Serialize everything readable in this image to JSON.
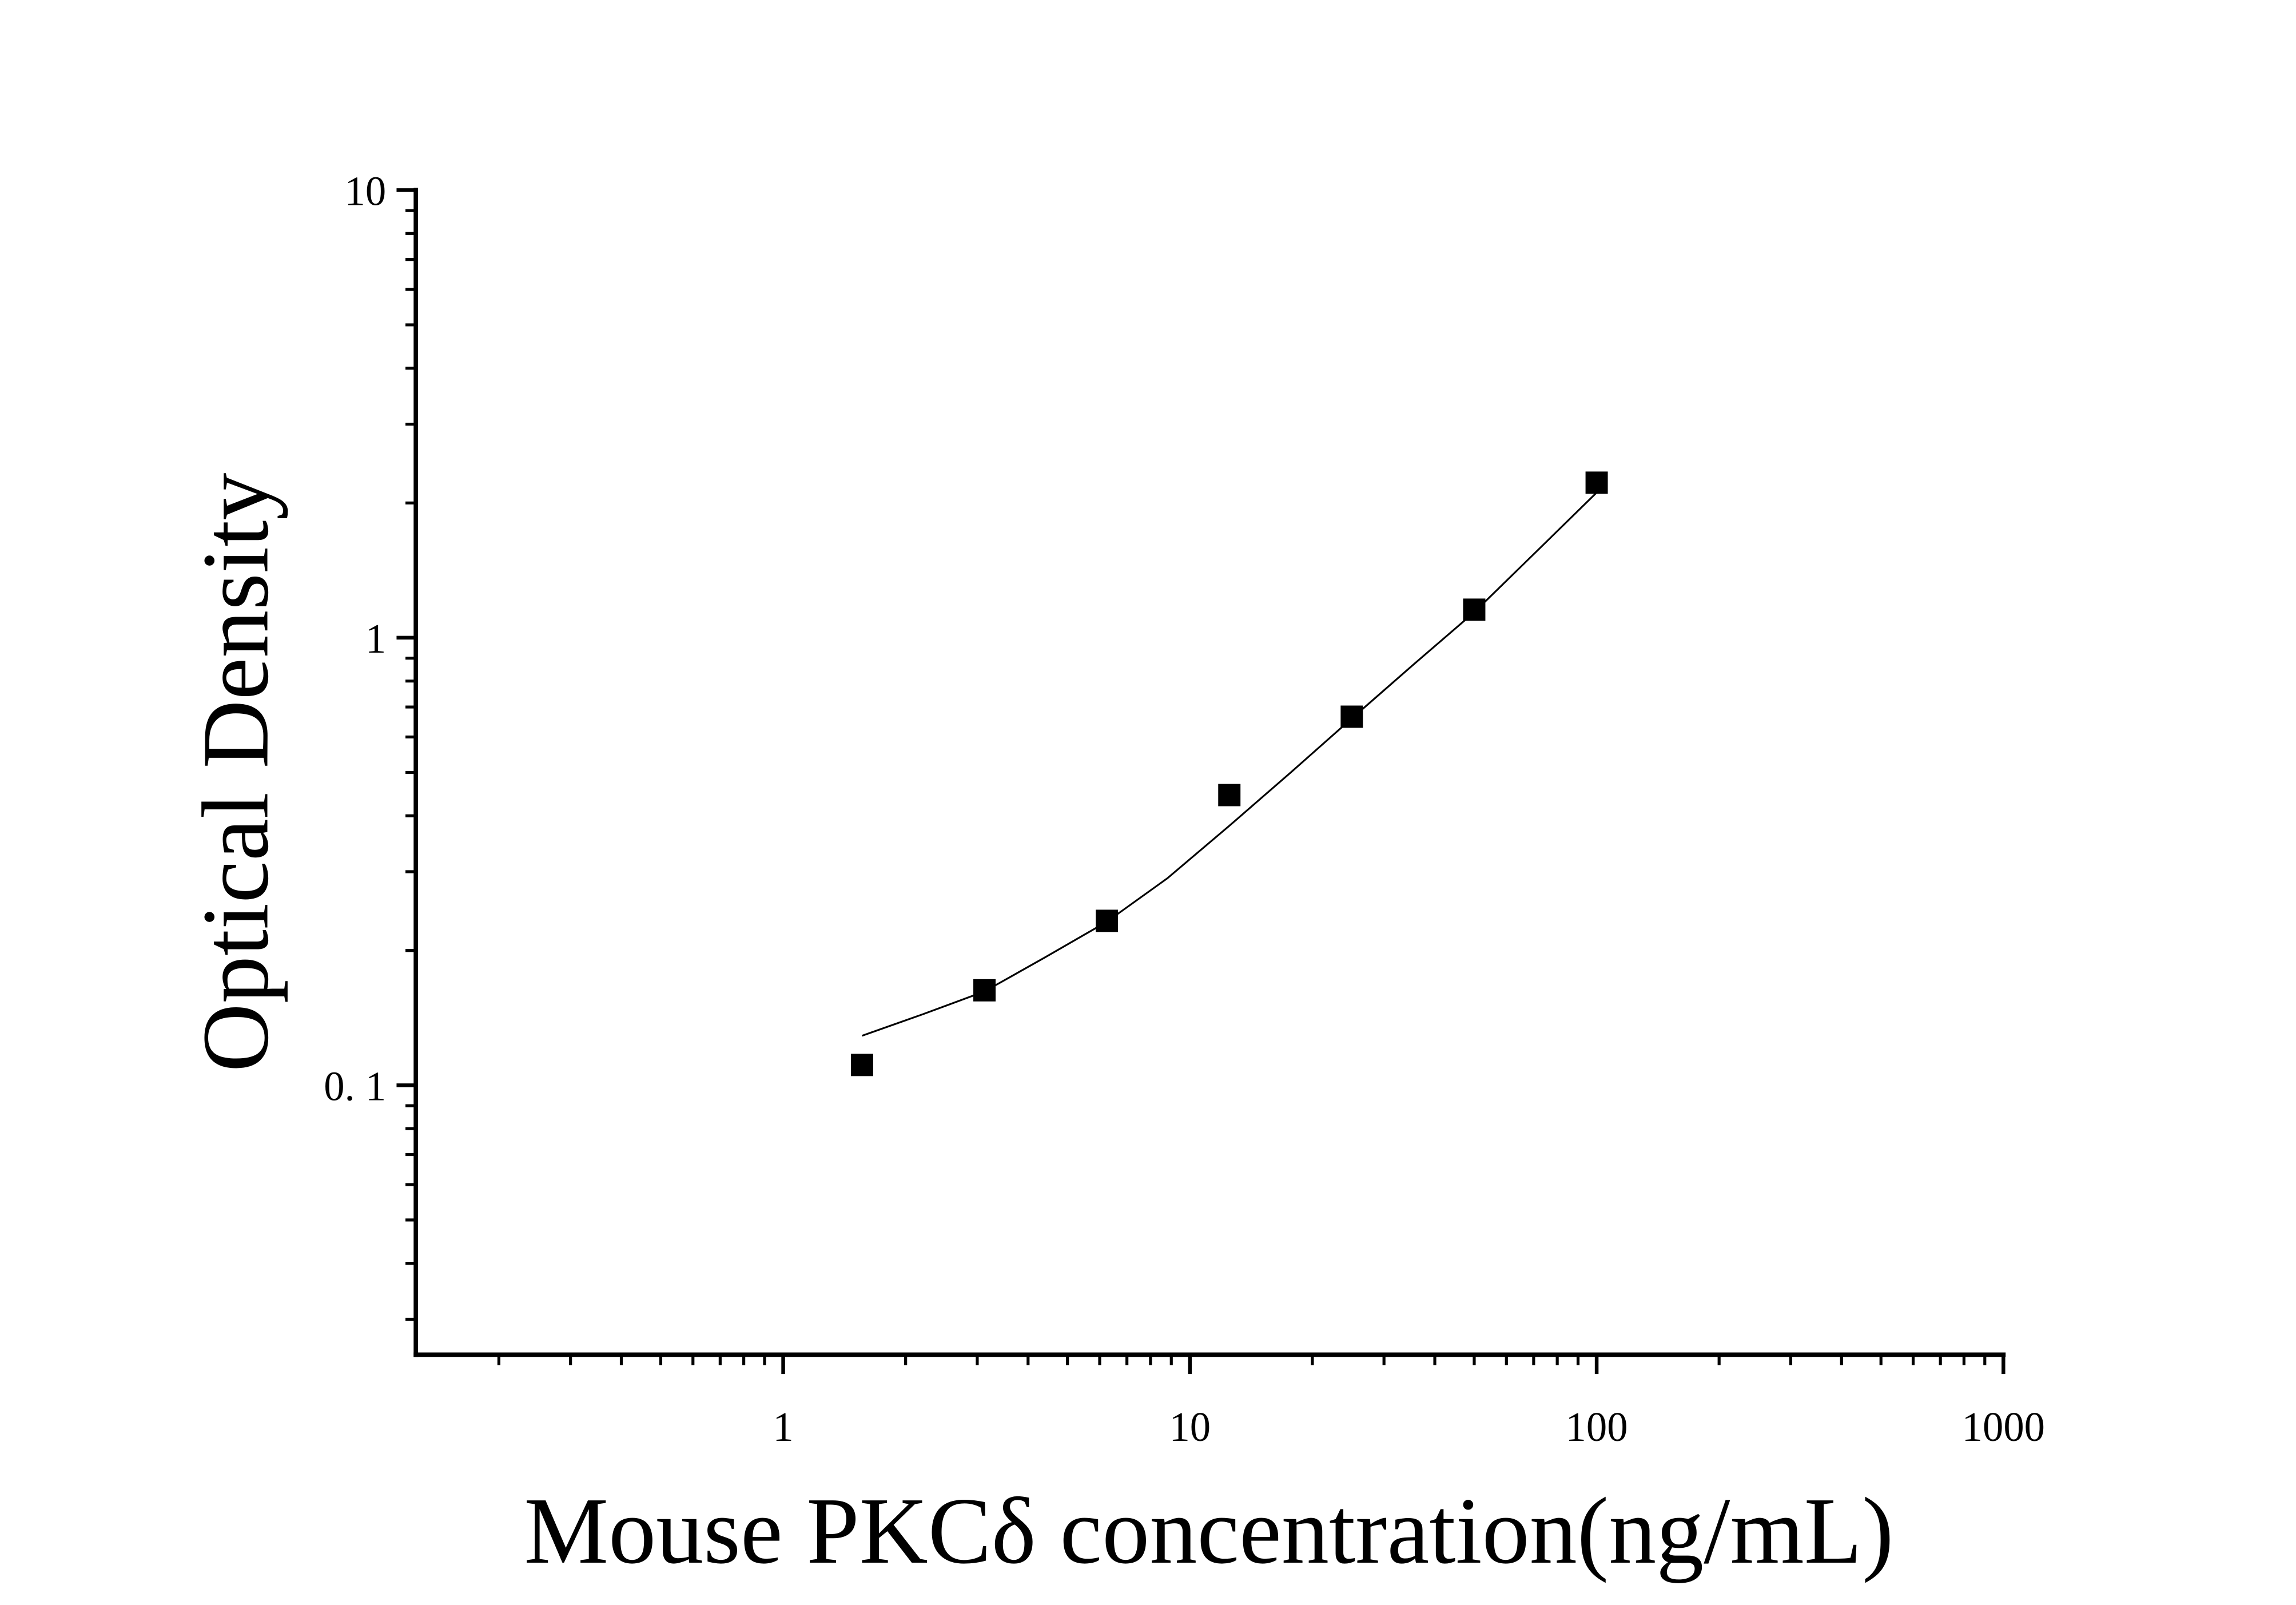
{
  "chart_data": {
    "type": "scatter",
    "x_label": "Mouse PKCδ concentration(ng/mL)",
    "y_label": "Optical Density",
    "x_log": true,
    "y_log": true,
    "xlim": [
      0.125,
      1000
    ],
    "ylim": [
      0.025,
      10
    ],
    "xticks": [
      1,
      10,
      100,
      1000
    ],
    "yticks": [
      {
        "value": 0.1,
        "label": "0. 1"
      },
      1,
      10
    ],
    "color": "#000000",
    "x": [
      1.5625,
      3.125,
      6.25,
      12.5,
      25,
      50,
      100
    ],
    "values": [
      0.111,
      0.163,
      0.233,
      0.445,
      0.666,
      1.155,
      2.22
    ],
    "fit": {
      "x": [
        1.5625,
        2.2,
        3.125,
        4.4,
        6.25,
        8.8,
        12.5,
        17.7,
        25,
        35.4,
        50,
        70.7,
        100
      ],
      "values": [
        0.129,
        0.144,
        0.162,
        0.193,
        0.232,
        0.29,
        0.38,
        0.5,
        0.66,
        0.87,
        1.14,
        1.55,
        2.11
      ]
    }
  }
}
